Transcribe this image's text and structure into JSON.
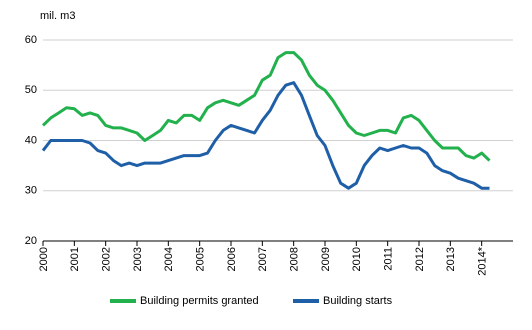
{
  "chart_data": {
    "type": "line",
    "y_label": "mil. m3",
    "x": [
      2000,
      2000.25,
      2000.5,
      2000.75,
      2001,
      2001.25,
      2001.5,
      2001.75,
      2002,
      2002.25,
      2002.5,
      2002.75,
      2003,
      2003.25,
      2003.5,
      2003.75,
      2004,
      2004.25,
      2004.5,
      2004.75,
      2005,
      2005.25,
      2005.5,
      2005.75,
      2006,
      2006.25,
      2006.5,
      2006.75,
      2007,
      2007.25,
      2007.5,
      2007.75,
      2008,
      2008.25,
      2008.5,
      2008.75,
      2009,
      2009.25,
      2009.5,
      2009.75,
      2010,
      2010.25,
      2010.5,
      2010.75,
      2011,
      2011.25,
      2011.5,
      2011.75,
      2012,
      2012.25,
      2012.5,
      2012.75,
      2013,
      2013.25,
      2013.5,
      2013.75,
      2014,
      2014.25
    ],
    "series": [
      {
        "name": "Building permits granted",
        "color": "#22b14c",
        "values": [
          43,
          44.5,
          45.5,
          46.5,
          46.3,
          45,
          45.5,
          45,
          43,
          42.5,
          42.5,
          42,
          41.5,
          40,
          41,
          42,
          44,
          43.5,
          45,
          45,
          44,
          46.5,
          47.5,
          48,
          47.5,
          47,
          48,
          49,
          52,
          53,
          56.5,
          57.5,
          57.5,
          56,
          53,
          51,
          50,
          48,
          45.5,
          43,
          41.5,
          41,
          41.5,
          42,
          42,
          41.5,
          44.5,
          45,
          44,
          42,
          40,
          38.5,
          38.5,
          38.5,
          37,
          36.5,
          37.5,
          36
        ]
      },
      {
        "name": "Building starts",
        "color": "#1f5fa8",
        "values": [
          38,
          40,
          40,
          40,
          40,
          40,
          39.5,
          38,
          37.5,
          36,
          35,
          35.5,
          35,
          35.5,
          35.5,
          35.5,
          36,
          36.5,
          37,
          37,
          37,
          37.5,
          40,
          42,
          43,
          42.5,
          42,
          41.5,
          44,
          46,
          49,
          51,
          51.5,
          49,
          45,
          41,
          39,
          35,
          31.5,
          30.5,
          31.5,
          35,
          37,
          38.5,
          38,
          38.5,
          39,
          38.5,
          38.5,
          37.5,
          35,
          34,
          33.5,
          32.5,
          32,
          31.5,
          30.5,
          30.5
        ]
      }
    ],
    "xlim": [
      2000,
      2015
    ],
    "xticks": [
      2000,
      2001,
      2002,
      2003,
      2004,
      2005,
      2006,
      2007,
      2008,
      2009,
      2010,
      2011,
      2012,
      2013,
      {
        "value": 2014,
        "label": "2014*"
      }
    ],
    "ylim": [
      20,
      60
    ],
    "yticks": [
      20,
      30,
      40,
      50,
      60
    ],
    "grid": true,
    "legend": "bottom"
  }
}
